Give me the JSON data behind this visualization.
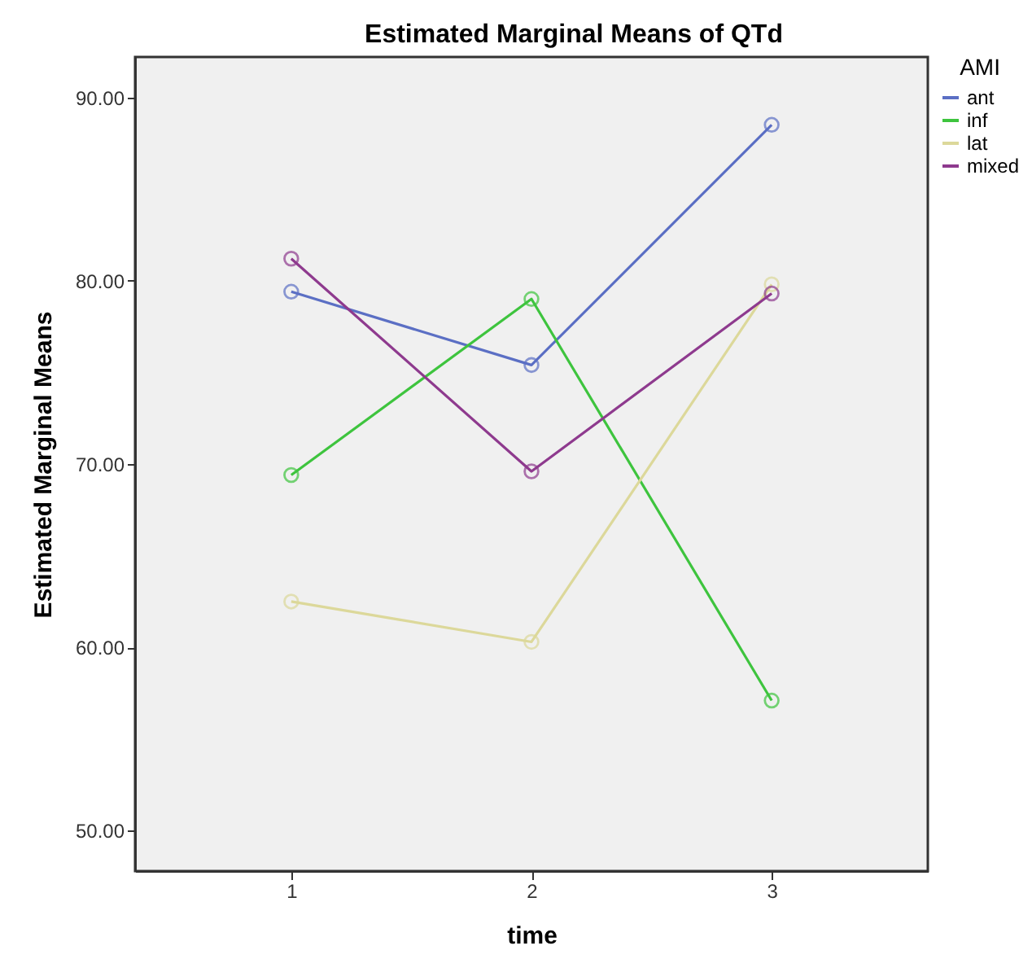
{
  "chart_data": {
    "type": "line",
    "title": "Estimated Marginal Means of QTd",
    "xlabel": "time",
    "ylabel": "Estimated Marginal Means",
    "legend_title": "AMI",
    "categories": [
      "1",
      "2",
      "3"
    ],
    "series": [
      {
        "name": "ant",
        "color": "#5b6fc4",
        "values": [
          79.4,
          75.4,
          88.5
        ]
      },
      {
        "name": "inf",
        "color": "#3ec43e",
        "values": [
          69.4,
          79.0,
          57.1
        ]
      },
      {
        "name": "lat",
        "color": "#dcd89a",
        "values": [
          62.5,
          60.3,
          79.8
        ]
      },
      {
        "name": "mixed",
        "color": "#8e3a8e",
        "values": [
          81.2,
          69.6,
          79.3
        ]
      }
    ],
    "ylim": [
      47.8,
      92.2
    ],
    "yticks": [
      {
        "value": 50,
        "label": "50.00"
      },
      {
        "value": 60,
        "label": "60.00"
      },
      {
        "value": 70,
        "label": "70.00"
      },
      {
        "value": 80,
        "label": "80.00"
      },
      {
        "value": 90,
        "label": "90.00"
      }
    ],
    "grid": false,
    "legend": "top right",
    "marker": "circle",
    "line_style": "solid"
  }
}
